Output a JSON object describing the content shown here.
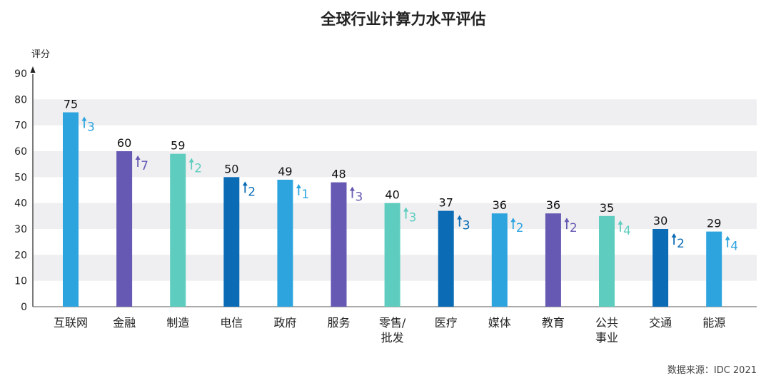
{
  "chart_data": {
    "type": "bar",
    "title": "全球行业计算力水平评估",
    "ylabel": "评分",
    "ylim": [
      0,
      90
    ],
    "yticks": [
      0,
      10,
      20,
      30,
      40,
      50,
      60,
      70,
      80,
      90
    ],
    "categories": [
      [
        "互联网"
      ],
      [
        "金融"
      ],
      [
        "制造"
      ],
      [
        "电信"
      ],
      [
        "政府"
      ],
      [
        "服务"
      ],
      [
        "零售/",
        "批发"
      ],
      [
        "医疗"
      ],
      [
        "媒体"
      ],
      [
        "教育"
      ],
      [
        "公共",
        "事业"
      ],
      [
        "交通"
      ],
      [
        "能源"
      ]
    ],
    "values": [
      75,
      60,
      59,
      50,
      49,
      48,
      40,
      37,
      36,
      36,
      35,
      30,
      29
    ],
    "value_labels": [
      "75",
      "60",
      "59",
      "50",
      "49",
      "48",
      "40",
      "37",
      "36",
      "36",
      "35",
      "30",
      "29"
    ],
    "rank_change": [
      "3",
      "7",
      "2",
      "2",
      "1",
      "3",
      "3",
      "3",
      "2",
      "2",
      "4",
      "2",
      "4"
    ],
    "bar_colors": [
      "#2EA4DE",
      "#6559B3",
      "#5ECDBF",
      "#0B6CB5",
      "#2EA4DE",
      "#6559B3",
      "#5ECDBF",
      "#0B6CB5",
      "#2EA4DE",
      "#6559B3",
      "#5ECDBF",
      "#0B6CB5",
      "#2EA4DE"
    ],
    "change_colors": [
      "#2EA4DE",
      "#6559B3",
      "#5ECDBF",
      "#0B6CB5",
      "#2EA4DE",
      "#6559B3",
      "#5ECDBF",
      "#0B6CB5",
      "#2EA4DE",
      "#6559B3",
      "#5ECDBF",
      "#0B6CB5",
      "#2EA4DE"
    ],
    "grid_band_color": "#EFEFF1",
    "source": "数据来源：IDC 2021"
  }
}
